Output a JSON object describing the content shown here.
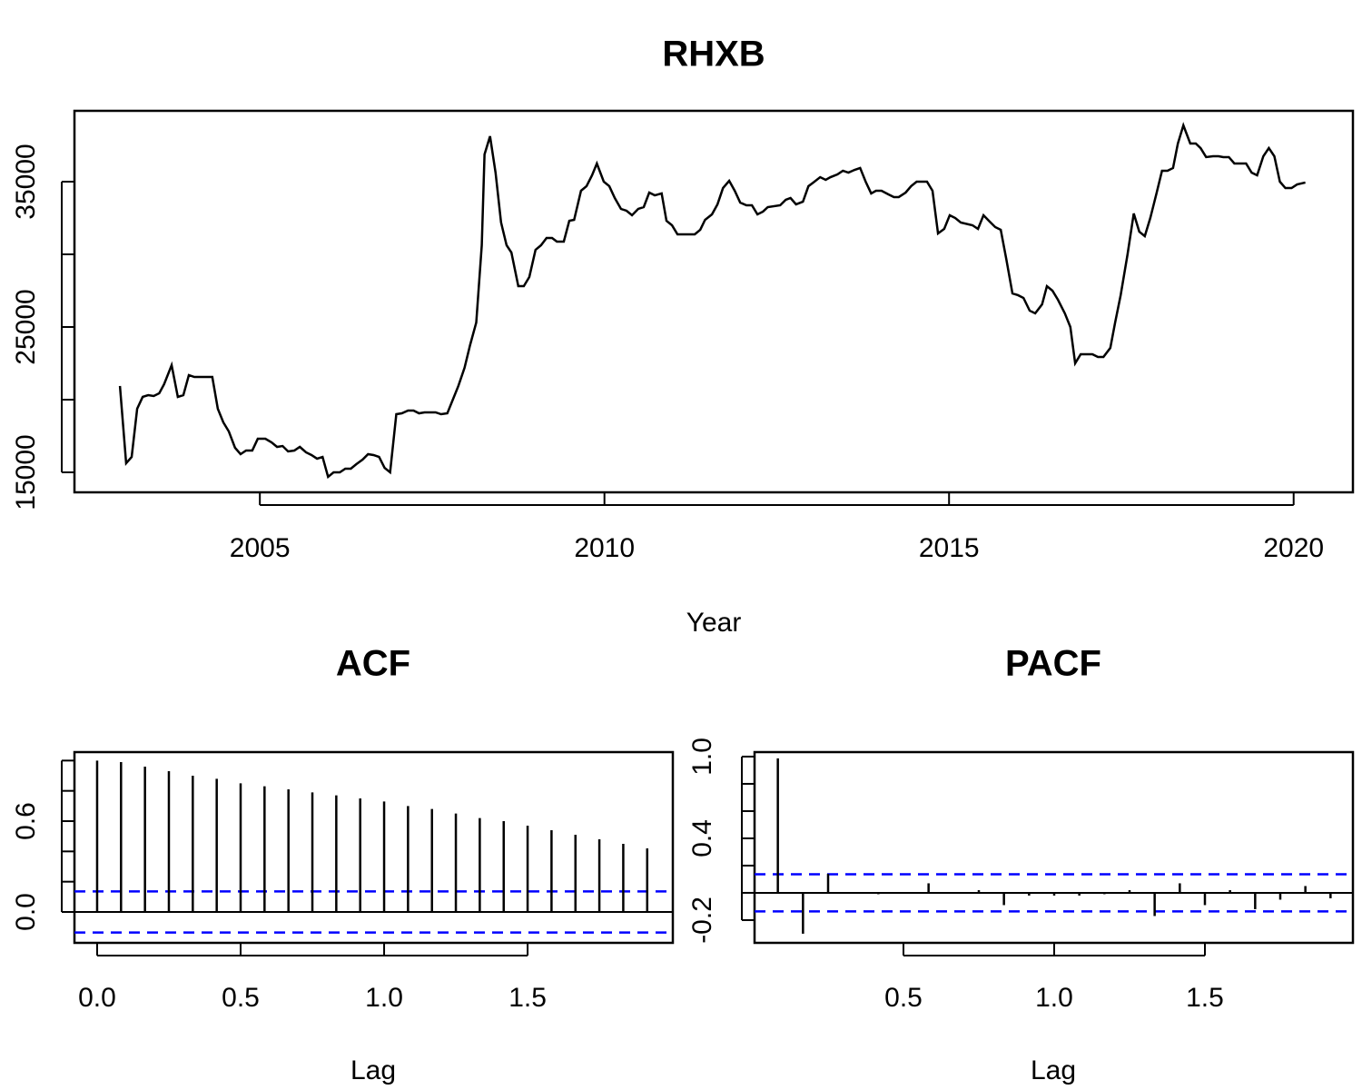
{
  "chart_data": [
    {
      "type": "line",
      "title": "RHXB",
      "x_label": "Year",
      "color": "#000000",
      "x": [
        2002.97,
        2003.06,
        2003.14,
        2003.22,
        2003.3,
        2003.38,
        2003.46,
        2003.54,
        2003.61,
        2003.72,
        2003.81,
        2003.89,
        2003.97,
        2004.05,
        2004.31,
        2004.39,
        2004.47,
        2004.55,
        2004.64,
        2004.72,
        2004.8,
        2004.89,
        2004.97,
        2005.08,
        2005.17,
        2005.25,
        2005.33,
        2005.41,
        2005.5,
        2005.58,
        2005.67,
        2005.75,
        2005.83,
        2005.91,
        2005.99,
        2006.07,
        2006.16,
        2006.24,
        2006.32,
        2006.4,
        2006.49,
        2006.57,
        2006.65,
        2006.73,
        2006.81,
        2006.89,
        2006.98,
        2007.06,
        2007.15,
        2007.23,
        2007.31,
        2007.39,
        2007.55,
        2007.63,
        2007.72,
        2007.8,
        2007.88,
        2007.97,
        2008.05,
        2008.14,
        2008.22,
        2008.26,
        2008.34,
        2008.42,
        2008.5,
        2008.58,
        2008.65,
        2008.75,
        2008.83,
        2008.91,
        2009.0,
        2009.08,
        2009.16,
        2009.24,
        2009.31,
        2009.41,
        2009.49,
        2009.56,
        2009.66,
        2009.74,
        2009.82,
        2009.89,
        2009.99,
        2010.07,
        2010.15,
        2010.24,
        2010.32,
        2010.4,
        2010.49,
        2010.57,
        2010.65,
        2010.73,
        2010.83,
        2010.9,
        2010.98,
        2011.06,
        2011.31,
        2011.39,
        2011.46,
        2011.56,
        2011.64,
        2011.72,
        2011.81,
        2011.89,
        2011.97,
        2012.06,
        2012.14,
        2012.22,
        2012.3,
        2012.37,
        2012.55,
        2012.63,
        2012.7,
        2012.78,
        2012.88,
        2012.96,
        2013.03,
        2013.13,
        2013.21,
        2013.28,
        2013.38,
        2013.46,
        2013.54,
        2013.63,
        2013.71,
        2013.79,
        2013.87,
        2013.94,
        2014.02,
        2014.12,
        2014.2,
        2014.27,
        2014.37,
        2014.45,
        2014.53,
        2014.6,
        2014.68,
        2014.76,
        2014.84,
        2014.93,
        2015.01,
        2015.09,
        2015.17,
        2015.34,
        2015.42,
        2015.5,
        2015.59,
        2015.67,
        2015.75,
        2015.83,
        2015.92,
        2016.0,
        2016.08,
        2016.17,
        2016.25,
        2016.35,
        2016.42,
        2016.5,
        2016.58,
        2016.68,
        2016.76,
        2016.83,
        2016.91,
        2017.01,
        2017.08,
        2017.16,
        2017.24,
        2017.34,
        2017.41,
        2017.49,
        2017.59,
        2017.68,
        2017.76,
        2017.84,
        2017.92,
        2018.01,
        2018.09,
        2018.17,
        2018.25,
        2018.32,
        2018.4,
        2018.5,
        2018.58,
        2018.65,
        2018.73,
        2018.83,
        2018.91,
        2018.98,
        2019.06,
        2019.14,
        2019.23,
        2019.31,
        2019.39,
        2019.47,
        2019.56,
        2019.64,
        2019.72,
        2019.8,
        2019.88,
        2019.97,
        2020.05,
        2020.17
      ],
      "values": [
        20940,
        15625,
        16060,
        19375,
        20190,
        20310,
        20250,
        20440,
        21060,
        22375,
        20190,
        20310,
        21690,
        21560,
        21560,
        19375,
        18440,
        17810,
        16690,
        16250,
        16500,
        16500,
        17310,
        17310,
        17060,
        16750,
        16810,
        16440,
        16500,
        16750,
        16375,
        16190,
        15940,
        16060,
        14690,
        15000,
        15000,
        15250,
        15250,
        15560,
        15875,
        16250,
        16190,
        16060,
        15310,
        15000,
        19000,
        19060,
        19250,
        19250,
        19060,
        19125,
        19125,
        19000,
        19060,
        20000,
        20940,
        22190,
        23750,
        25310,
        30625,
        36875,
        38125,
        35625,
        32190,
        30625,
        30125,
        27810,
        27810,
        28440,
        30310,
        30625,
        31125,
        31125,
        30875,
        30875,
        32310,
        32375,
        34375,
        34690,
        35440,
        36250,
        35000,
        34690,
        33875,
        33125,
        33000,
        32690,
        33125,
        33250,
        34250,
        34060,
        34190,
        32310,
        32000,
        31375,
        31375,
        31690,
        32375,
        32750,
        33440,
        34560,
        35060,
        34375,
        33560,
        33375,
        33375,
        32750,
        32940,
        33250,
        33375,
        33750,
        33875,
        33440,
        33625,
        34690,
        34940,
        35310,
        35125,
        35310,
        35500,
        35750,
        35625,
        35810,
        35940,
        35000,
        34190,
        34375,
        34375,
        34125,
        33940,
        33940,
        34250,
        34690,
        35000,
        35000,
        35000,
        34375,
        31440,
        31750,
        32690,
        32500,
        32190,
        32000,
        31750,
        32690,
        32250,
        31875,
        31690,
        29690,
        27310,
        27190,
        27000,
        26125,
        25940,
        26560,
        27810,
        27500,
        26875,
        25940,
        25000,
        22500,
        23125,
        23125,
        23125,
        22940,
        22940,
        23560,
        25310,
        27190,
        30000,
        32810,
        31560,
        31250,
        32500,
        34190,
        35750,
        35750,
        35940,
        37625,
        38875,
        37625,
        37625,
        37310,
        36690,
        36750,
        36750,
        36690,
        36690,
        36250,
        36250,
        36250,
        35625,
        35440,
        36750,
        37310,
        36750,
        35000,
        34560,
        34560,
        34810,
        34940
      ],
      "xlim": [
        2002.31,
        2020.86
      ],
      "xticks": [
        2005,
        2010,
        2015,
        2020
      ],
      "ylim": [
        13625,
        39875
      ],
      "yticks": [
        15000,
        25000,
        35000
      ],
      "yminor_ticks": [
        20000,
        30000
      ]
    },
    {
      "type": "bar",
      "title": "ACF",
      "x_label": "Lag",
      "color": "#000000",
      "x": [
        0,
        0.0833,
        0.1667,
        0.25,
        0.3333,
        0.4167,
        0.5,
        0.5833,
        0.6667,
        0.75,
        0.8333,
        0.9167,
        1,
        1.0833,
        1.1667,
        1.25,
        1.3333,
        1.4167,
        1.5,
        1.5833,
        1.6667,
        1.75,
        1.8333,
        1.9167
      ],
      "values": [
        1.0,
        0.99,
        0.96,
        0.93,
        0.9,
        0.88,
        0.85,
        0.83,
        0.81,
        0.79,
        0.77,
        0.75,
        0.73,
        0.7,
        0.68,
        0.65,
        0.62,
        0.6,
        0.57,
        0.54,
        0.51,
        0.48,
        0.45,
        0.42
      ],
      "conf_limits": [
        0.136,
        -0.136
      ],
      "conf_color": "#0000ff",
      "xlim": [
        -0.079,
        2.006
      ],
      "xticks": [
        {
          "value": 0,
          "label": "0.0"
        },
        0.5,
        {
          "value": 1,
          "label": "1.0"
        },
        1.5
      ],
      "ylim": [
        -0.204,
        1.056
      ],
      "yticks": [
        {
          "value": 0,
          "label": "0.0"
        },
        0.6
      ],
      "yminor_ticks": [
        0.2,
        0.4,
        0.8,
        1.0
      ]
    },
    {
      "type": "bar",
      "title": "PACF",
      "x_label": "Lag",
      "color": "#000000",
      "x": [
        0.0833,
        0.1667,
        0.25,
        0.3333,
        0.4167,
        0.5,
        0.5833,
        0.6667,
        0.75,
        0.8333,
        0.9167,
        1,
        1.0833,
        1.1667,
        1.25,
        1.3333,
        1.4167,
        1.5,
        1.5833,
        1.6667,
        1.75,
        1.8333,
        1.9167
      ],
      "values": [
        0.987,
        -0.3,
        0.14,
        0.0,
        -0.01,
        0.0,
        0.07,
        0.0,
        0.02,
        -0.09,
        -0.02,
        -0.02,
        -0.02,
        -0.01,
        0.02,
        -0.17,
        0.07,
        -0.09,
        0.02,
        -0.12,
        -0.05,
        0.05,
        -0.04
      ],
      "conf_limits": [
        0.136,
        -0.136
      ],
      "conf_color": "#0000ff",
      "xlim": [
        0.006,
        1.991
      ],
      "xticks": [
        0.5,
        {
          "value": 1,
          "label": "1.0"
        },
        1.5
      ],
      "ylim": [
        -0.367,
        1.033
      ],
      "yticks": [
        -0.2,
        0.4,
        {
          "value": 1,
          "label": "1.0"
        }
      ],
      "yminor_ticks": [
        0.0,
        0.2,
        0.6,
        0.8
      ]
    }
  ]
}
